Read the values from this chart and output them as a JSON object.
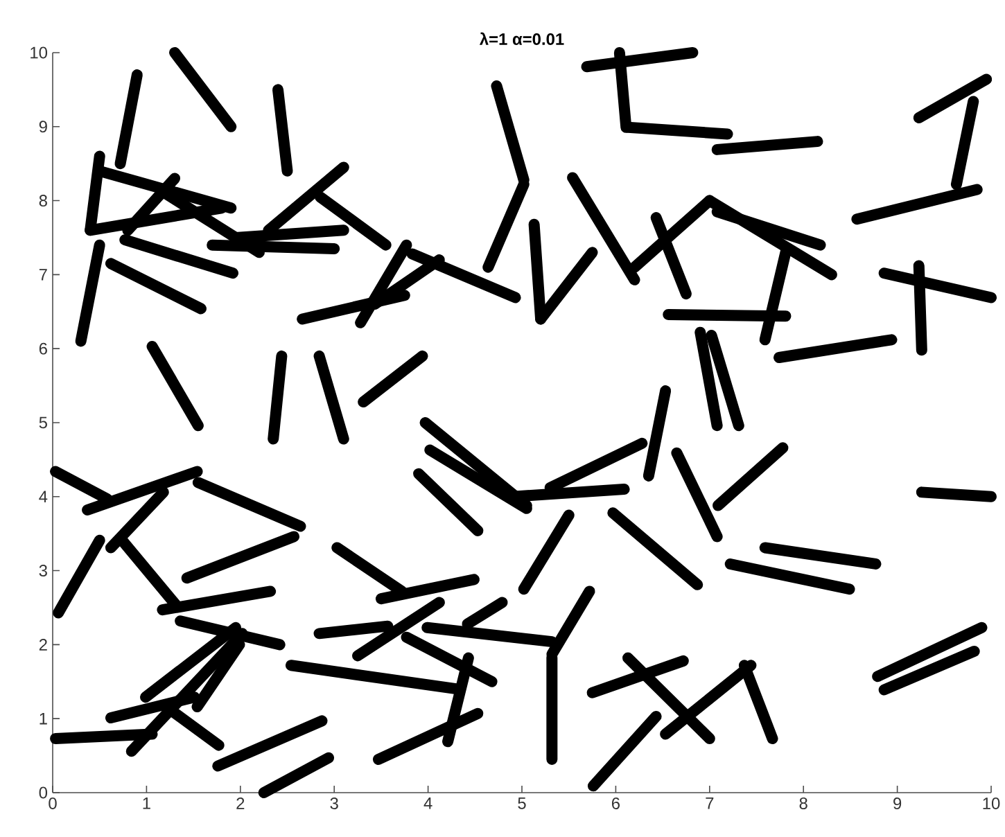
{
  "chart_data": {
    "type": "line",
    "title": "λ=1  α=0.01",
    "xlim": [
      0,
      10
    ],
    "ylim": [
      0,
      10
    ],
    "xticks": [
      0,
      1,
      2,
      3,
      4,
      5,
      6,
      7,
      8,
      9,
      10
    ],
    "yticks": [
      0,
      1,
      2,
      3,
      4,
      5,
      6,
      7,
      8,
      9,
      10
    ],
    "grid": false,
    "line_style": "solid",
    "series": [
      {
        "color": "#000000",
        "x": [
          0.9,
          0.72
        ],
        "values": [
          9.7,
          8.5
        ]
      },
      {
        "color": "#000000",
        "x": [
          1.3,
          1.9
        ],
        "values": [
          10.0,
          9.0
        ]
      },
      {
        "color": "#000000",
        "x": [
          2.4,
          2.5
        ],
        "values": [
          9.5,
          8.4
        ]
      },
      {
        "color": "#000000",
        "x": [
          0.5,
          0.4
        ],
        "values": [
          8.6,
          7.6
        ]
      },
      {
        "color": "#000000",
        "x": [
          0.5,
          1.9
        ],
        "values": [
          8.4,
          7.9
        ]
      },
      {
        "color": "#000000",
        "x": [
          0.4,
          1.8
        ],
        "values": [
          7.6,
          7.9
        ]
      },
      {
        "color": "#000000",
        "x": [
          0.8,
          1.3
        ],
        "values": [
          7.6,
          8.3
        ]
      },
      {
        "color": "#000000",
        "x": [
          1.2,
          2.2
        ],
        "values": [
          8.1,
          7.3
        ]
      },
      {
        "color": "#000000",
        "x": [
          1.7,
          3.0
        ],
        "values": [
          7.4,
          7.35
        ]
      },
      {
        "color": "#000000",
        "x": [
          1.95,
          3.1
        ],
        "values": [
          7.5,
          7.6
        ]
      },
      {
        "color": "#000000",
        "x": [
          2.3,
          3.1
        ],
        "values": [
          7.6,
          8.45
        ]
      },
      {
        "color": "#000000",
        "x": [
          2.85,
          3.55
        ],
        "values": [
          8.05,
          7.4
        ]
      },
      {
        "color": "#000000",
        "x": [
          0.5,
          0.3
        ],
        "values": [
          7.4,
          6.1
        ]
      },
      {
        "color": "#000000",
        "x": [
          0.77,
          1.92
        ],
        "values": [
          7.47,
          7.02
        ]
      },
      {
        "color": "#000000",
        "x": [
          0.62,
          1.58
        ],
        "values": [
          7.15,
          6.54
        ]
      },
      {
        "color": "#000000",
        "x": [
          2.66,
          3.75
        ],
        "values": [
          6.4,
          6.72
        ]
      },
      {
        "color": "#000000",
        "x": [
          3.77,
          3.28
        ],
        "values": [
          7.4,
          6.35
        ]
      },
      {
        "color": "#000000",
        "x": [
          3.83,
          4.93
        ],
        "values": [
          7.28,
          6.69
        ]
      },
      {
        "color": "#000000",
        "x": [
          4.12,
          3.43
        ],
        "values": [
          7.2,
          6.6
        ]
      },
      {
        "color": "#000000",
        "x": [
          1.06,
          1.55
        ],
        "values": [
          6.03,
          4.96
        ]
      },
      {
        "color": "#000000",
        "x": [
          2.44,
          2.35
        ],
        "values": [
          5.9,
          4.78
        ]
      },
      {
        "color": "#000000",
        "x": [
          2.84,
          3.1
        ],
        "values": [
          5.9,
          4.78
        ]
      },
      {
        "color": "#000000",
        "x": [
          3.31,
          3.94
        ],
        "values": [
          5.28,
          5.9
        ]
      },
      {
        "color": "#000000",
        "x": [
          4.73,
          5.02
        ],
        "values": [
          9.55,
          8.28
        ]
      },
      {
        "color": "#000000",
        "x": [
          5.02,
          4.64
        ],
        "values": [
          8.22,
          7.1
        ]
      },
      {
        "color": "#000000",
        "x": [
          5.69,
          6.82
        ],
        "values": [
          9.81,
          10.0
        ]
      },
      {
        "color": "#000000",
        "x": [
          6.04,
          6.11
        ],
        "values": [
          10.0,
          8.99
        ]
      },
      {
        "color": "#000000",
        "x": [
          6.13,
          7.19
        ],
        "values": [
          8.99,
          8.9
        ]
      },
      {
        "color": "#000000",
        "x": [
          7.08,
          8.15
        ],
        "values": [
          8.69,
          8.8
        ]
      },
      {
        "color": "#000000",
        "x": [
          9.23,
          9.95
        ],
        "values": [
          9.12,
          9.64
        ]
      },
      {
        "color": "#000000",
        "x": [
          9.81,
          9.63
        ],
        "values": [
          9.34,
          8.22
        ]
      },
      {
        "color": "#000000",
        "x": [
          8.57,
          9.85
        ],
        "values": [
          7.75,
          8.15
        ]
      },
      {
        "color": "#000000",
        "x": [
          8.86,
          10.0
        ],
        "values": [
          7.02,
          6.69
        ]
      },
      {
        "color": "#000000",
        "x": [
          9.23,
          9.26
        ],
        "values": [
          7.12,
          5.98
        ]
      },
      {
        "color": "#000000",
        "x": [
          7.74,
          8.94
        ],
        "values": [
          5.88,
          6.12
        ]
      },
      {
        "color": "#000000",
        "x": [
          6.56,
          7.81
        ],
        "values": [
          6.46,
          6.44
        ]
      },
      {
        "color": "#000000",
        "x": [
          7.81,
          7.59
        ],
        "values": [
          7.3,
          6.12
        ]
      },
      {
        "color": "#000000",
        "x": [
          7.0,
          8.3
        ],
        "values": [
          8.0,
          7.0
        ]
      },
      {
        "color": "#000000",
        "x": [
          7.08,
          8.18
        ],
        "values": [
          7.85,
          7.4
        ]
      },
      {
        "color": "#000000",
        "x": [
          6.2,
          7.0
        ],
        "values": [
          7.1,
          8.0
        ]
      },
      {
        "color": "#000000",
        "x": [
          5.54,
          6.2
        ],
        "values": [
          8.31,
          6.93
        ]
      },
      {
        "color": "#000000",
        "x": [
          6.43,
          6.75
        ],
        "values": [
          7.77,
          6.74
        ]
      },
      {
        "color": "#000000",
        "x": [
          5.13,
          5.2
        ],
        "values": [
          7.68,
          6.4
        ]
      },
      {
        "color": "#000000",
        "x": [
          5.2,
          5.75
        ],
        "values": [
          6.4,
          7.3
        ]
      },
      {
        "color": "#000000",
        "x": [
          6.9,
          7.08
        ],
        "values": [
          6.22,
          4.96
        ]
      },
      {
        "color": "#000000",
        "x": [
          7.02,
          7.31
        ],
        "values": [
          6.18,
          4.96
        ]
      },
      {
        "color": "#000000",
        "x": [
          6.53,
          6.35
        ],
        "values": [
          5.43,
          4.28
        ]
      },
      {
        "color": "#000000",
        "x": [
          5.3,
          6.28
        ],
        "values": [
          4.12,
          4.72
        ]
      },
      {
        "color": "#000000",
        "x": [
          4.9,
          6.09
        ],
        "values": [
          4.0,
          4.1
        ]
      },
      {
        "color": "#000000",
        "x": [
          6.65,
          7.08
        ],
        "values": [
          4.59,
          3.46
        ]
      },
      {
        "color": "#000000",
        "x": [
          7.09,
          7.78
        ],
        "values": [
          3.88,
          4.66
        ]
      },
      {
        "color": "#000000",
        "x": [
          9.26,
          10.0
        ],
        "values": [
          4.06,
          4.0
        ]
      },
      {
        "color": "#000000",
        "x": [
          5.5,
          5.02
        ],
        "values": [
          3.75,
          2.75
        ]
      },
      {
        "color": "#000000",
        "x": [
          5.97,
          6.87
        ],
        "values": [
          3.78,
          2.81
        ]
      },
      {
        "color": "#000000",
        "x": [
          7.59,
          8.77
        ],
        "values": [
          3.31,
          3.09
        ]
      },
      {
        "color": "#000000",
        "x": [
          7.22,
          8.49
        ],
        "values": [
          3.09,
          2.75
        ]
      },
      {
        "color": "#000000",
        "x": [
          5.72,
          5.32
        ],
        "values": [
          2.72,
          1.87
        ]
      },
      {
        "color": "#000000",
        "x": [
          5.32,
          5.32
        ],
        "values": [
          1.82,
          0.45
        ]
      },
      {
        "color": "#000000",
        "x": [
          3.99,
          5.32
        ],
        "values": [
          2.23,
          2.04
        ]
      },
      {
        "color": "#000000",
        "x": [
          5.75,
          6.72
        ],
        "values": [
          1.35,
          1.78
        ]
      },
      {
        "color": "#000000",
        "x": [
          6.13,
          7.0
        ],
        "values": [
          1.82,
          0.73
        ]
      },
      {
        "color": "#000000",
        "x": [
          5.76,
          6.43
        ],
        "values": [
          0.09,
          1.03
        ]
      },
      {
        "color": "#000000",
        "x": [
          6.53,
          7.44
        ],
        "values": [
          0.79,
          1.72
        ]
      },
      {
        "color": "#000000",
        "x": [
          7.37,
          7.67
        ],
        "values": [
          1.72,
          0.73
        ]
      },
      {
        "color": "#000000",
        "x": [
          8.79,
          9.9
        ],
        "values": [
          1.57,
          2.23
        ]
      },
      {
        "color": "#000000",
        "x": [
          8.86,
          9.82
        ],
        "values": [
          1.39,
          1.91
        ]
      },
      {
        "color": "#000000",
        "x": [
          0.03,
          0.58
        ],
        "values": [
          4.34,
          3.97
        ]
      },
      {
        "color": "#000000",
        "x": [
          0.37,
          1.54
        ],
        "values": [
          3.82,
          4.34
        ]
      },
      {
        "color": "#000000",
        "x": [
          0.62,
          1.18
        ],
        "values": [
          3.31,
          4.06
        ]
      },
      {
        "color": "#000000",
        "x": [
          0.06,
          0.5
        ],
        "values": [
          2.43,
          3.41
        ]
      },
      {
        "color": "#000000",
        "x": [
          0.74,
          1.33
        ],
        "values": [
          3.41,
          2.51
        ]
      },
      {
        "color": "#000000",
        "x": [
          1.55,
          2.64
        ],
        "values": [
          4.19,
          3.6
        ]
      },
      {
        "color": "#000000",
        "x": [
          1.43,
          2.57
        ],
        "values": [
          2.9,
          3.46
        ]
      },
      {
        "color": "#000000",
        "x": [
          1.17,
          2.32
        ],
        "values": [
          2.47,
          2.72
        ]
      },
      {
        "color": "#000000",
        "x": [
          1.36,
          2.42
        ],
        "values": [
          2.32,
          2.0
        ]
      },
      {
        "color": "#000000",
        "x": [
          3.03,
          3.72
        ],
        "values": [
          3.31,
          2.72
        ]
      },
      {
        "color": "#000000",
        "x": [
          3.5,
          4.49
        ],
        "values": [
          2.62,
          2.88
        ]
      },
      {
        "color": "#000000",
        "x": [
          3.9,
          4.53
        ],
        "values": [
          4.31,
          3.54
        ]
      },
      {
        "color": "#000000",
        "x": [
          3.97,
          5.05
        ],
        "values": [
          5.0,
          3.88
        ]
      },
      {
        "color": "#000000",
        "x": [
          4.02,
          5.05
        ],
        "values": [
          4.63,
          3.84
        ]
      },
      {
        "color": "#000000",
        "x": [
          2.84,
          3.57
        ],
        "values": [
          2.15,
          2.25
        ]
      },
      {
        "color": "#000000",
        "x": [
          3.25,
          4.12
        ],
        "values": [
          1.85,
          2.57
        ]
      },
      {
        "color": "#000000",
        "x": [
          4.42,
          4.79
        ],
        "values": [
          2.28,
          2.57
        ]
      },
      {
        "color": "#000000",
        "x": [
          2.54,
          4.31
        ],
        "values": [
          1.72,
          1.4
        ]
      },
      {
        "color": "#000000",
        "x": [
          3.77,
          4.68
        ],
        "values": [
          2.1,
          1.5
        ]
      },
      {
        "color": "#000000",
        "x": [
          4.43,
          4.21
        ],
        "values": [
          1.82,
          0.69
        ]
      },
      {
        "color": "#000000",
        "x": [
          3.47,
          4.53
        ],
        "values": [
          0.45,
          1.07
        ]
      },
      {
        "color": "#000000",
        "x": [
          1.76,
          2.87
        ],
        "values": [
          0.36,
          0.97
        ]
      },
      {
        "color": "#000000",
        "x": [
          2.25,
          2.94
        ],
        "values": [
          0.0,
          0.47
        ]
      },
      {
        "color": "#000000",
        "x": [
          0.03,
          1.06
        ],
        "values": [
          0.73,
          0.79
        ]
      },
      {
        "color": "#000000",
        "x": [
          0.84,
          2.02
        ],
        "values": [
          0.56,
          2.15
        ]
      },
      {
        "color": "#000000",
        "x": [
          0.99,
          1.95
        ],
        "values": [
          1.29,
          2.23
        ]
      },
      {
        "color": "#000000",
        "x": [
          1.54,
          1.99
        ],
        "values": [
          1.16,
          2.0
        ]
      },
      {
        "color": "#000000",
        "x": [
          0.62,
          1.51
        ],
        "values": [
          1.01,
          1.29
        ]
      },
      {
        "color": "#000000",
        "x": [
          1.21,
          1.77
        ],
        "values": [
          1.16,
          0.64
        ]
      }
    ]
  }
}
